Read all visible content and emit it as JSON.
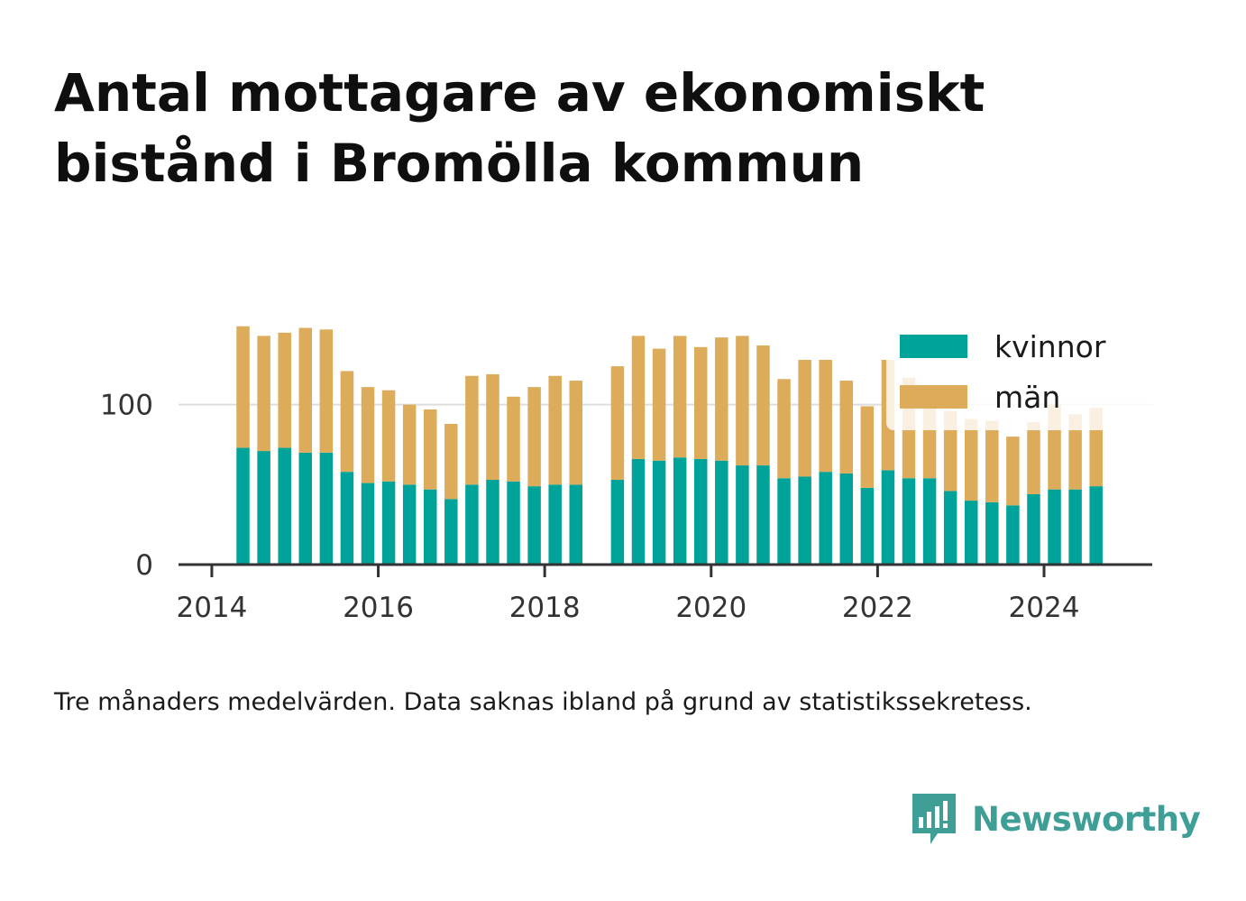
{
  "title": "Antal mottagare av ekonomiskt bistånd i Bromölla kommun",
  "caption": "Tre månaders medelvärden. Data saknas ibland på grund av statistikssekretess.",
  "brand": {
    "name": "Newsworthy",
    "icon": "newsworthy-logo-icon",
    "color": "#3f9e96"
  },
  "chart_data": {
    "type": "bar",
    "stacked": true,
    "x_ticks": [
      "2014",
      "2016",
      "2018",
      "2020",
      "2022",
      "2024"
    ],
    "y_ticks": [
      "0",
      "100"
    ],
    "ylim": [
      0,
      150
    ],
    "xlim": [
      2013.6,
      2025.3
    ],
    "grid": "horizontal",
    "legend_position": "top-right",
    "series": [
      {
        "name": "kvinnor",
        "color": "#00a39a"
      },
      {
        "name": "män",
        "color": "#dcac5a"
      }
    ],
    "x": [
      2014.375,
      2014.625,
      2014.875,
      2015.125,
      2015.375,
      2015.625,
      2015.875,
      2016.125,
      2016.375,
      2016.625,
      2016.875,
      2017.125,
      2017.375,
      2017.625,
      2017.875,
      2018.125,
      2018.375,
      2018.875,
      2019.125,
      2019.375,
      2019.625,
      2019.875,
      2020.125,
      2020.375,
      2020.625,
      2020.875,
      2021.125,
      2021.375,
      2021.625,
      2021.875,
      2022.125,
      2022.375,
      2022.625,
      2022.875,
      2023.125,
      2023.375,
      2023.625,
      2023.875,
      2024.125,
      2024.375,
      2024.625
    ],
    "kvinnor": [
      73,
      71,
      73,
      70,
      70,
      58,
      51,
      52,
      50,
      47,
      41,
      50,
      53,
      52,
      49,
      50,
      50,
      53,
      66,
      65,
      67,
      66,
      65,
      62,
      62,
      54,
      55,
      58,
      57,
      48,
      59,
      54,
      54,
      46,
      40,
      39,
      37,
      44,
      47,
      47,
      49
    ],
    "man": [
      76,
      72,
      72,
      78,
      77,
      63,
      60,
      57,
      50,
      50,
      47,
      68,
      66,
      53,
      62,
      68,
      65,
      71,
      77,
      70,
      76,
      70,
      77,
      81,
      75,
      62,
      73,
      70,
      58,
      51,
      69,
      63,
      51,
      50,
      51,
      51,
      43,
      45,
      53,
      47,
      49
    ]
  }
}
